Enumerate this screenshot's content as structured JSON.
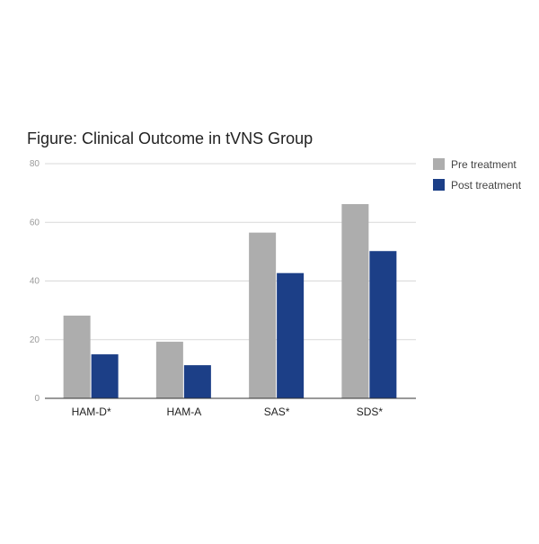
{
  "chart_data": {
    "type": "bar",
    "title": "Figure: Clinical Outcome in tVNS Group",
    "categories": [
      "HAM-D*",
      "HAM-A",
      "SAS*",
      "SDS*"
    ],
    "series": [
      {
        "name": "Pre treatment",
        "values": [
          28.2,
          19.3,
          56.5,
          66.2
        ],
        "color": "#adadad"
      },
      {
        "name": "Post treatment",
        "values": [
          15.0,
          11.3,
          42.7,
          50.2
        ],
        "color": "#1c3f87"
      }
    ],
    "yticks": [
      "0",
      "20",
      "40",
      "60",
      "80"
    ],
    "ylim": [
      0,
      80
    ],
    "xlabel": "",
    "ylabel": "",
    "grid": true,
    "legend_position": "right"
  }
}
